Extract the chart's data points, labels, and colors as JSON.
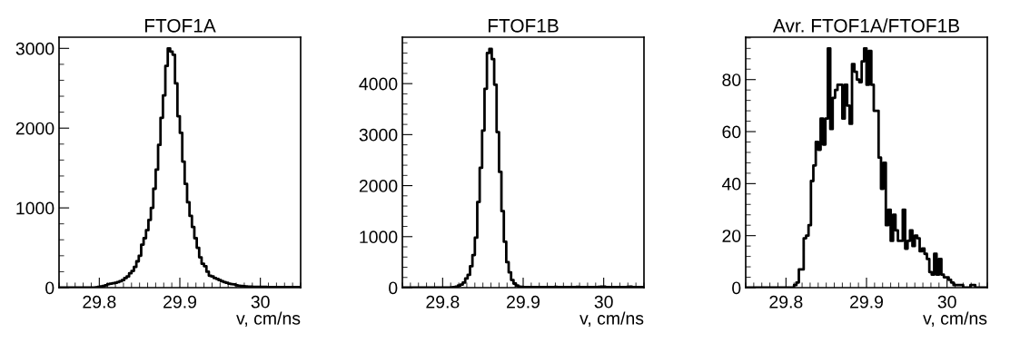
{
  "chart_data": [
    {
      "type": "histogram",
      "title": "FTOF1A",
      "xlabel": "v, cm/ns",
      "color": "#000000",
      "bins": [
        29.75,
        29.753,
        29.756,
        29.759,
        29.762,
        29.765,
        29.768,
        29.771,
        29.774,
        29.777,
        29.78,
        29.783,
        29.786,
        29.789,
        29.792,
        29.795,
        29.798,
        29.801,
        29.804,
        29.807,
        29.81,
        29.813,
        29.816,
        29.819,
        29.822,
        29.825,
        29.828,
        29.831,
        29.834,
        29.837,
        29.84,
        29.843,
        29.846,
        29.849,
        29.852,
        29.855,
        29.858,
        29.861,
        29.864,
        29.867,
        29.87,
        29.873,
        29.876,
        29.879,
        29.882,
        29.885,
        29.888,
        29.891,
        29.894,
        29.897,
        29.9,
        29.903,
        29.906,
        29.909,
        29.912,
        29.915,
        29.918,
        29.921,
        29.924,
        29.927,
        29.93,
        29.933,
        29.936,
        29.939,
        29.942,
        29.945,
        29.948,
        29.951,
        29.954,
        29.957,
        29.96,
        29.963,
        29.966,
        29.969,
        29.972,
        29.975,
        29.978,
        29.981,
        29.984,
        29.987,
        29.99,
        29.993,
        29.996,
        29.999,
        30.002,
        30.005,
        30.008,
        30.011,
        30.014,
        30.017,
        30.02,
        30.023,
        30.026,
        30.029,
        30.032,
        30.035,
        30.038,
        30.041,
        30.044,
        30.047,
        30.05
      ],
      "values": [
        0,
        0,
        0,
        0,
        0,
        0,
        0,
        0,
        0,
        0,
        0,
        0,
        0,
        0,
        0,
        5,
        10,
        15,
        20,
        30,
        45,
        50,
        55,
        60,
        70,
        80,
        95,
        120,
        140,
        180,
        210,
        260,
        330,
        400,
        540,
        620,
        720,
        850,
        1000,
        1240,
        1480,
        1790,
        2130,
        2410,
        2780,
        3000,
        2960,
        2920,
        2560,
        2150,
        1940,
        1580,
        1300,
        1070,
        900,
        760,
        620,
        500,
        380,
        300,
        270,
        200,
        150,
        140,
        120,
        110,
        95,
        80,
        70,
        60,
        50,
        45,
        40,
        30,
        25,
        20,
        18,
        15,
        12,
        12,
        10,
        10,
        10,
        10,
        10,
        10,
        8,
        8,
        8,
        8,
        8,
        8,
        8,
        8,
        6,
        6,
        6,
        6,
        6,
        6
      ],
      "xlim": [
        29.75,
        30.05
      ],
      "xticks": [
        29.8,
        29.9,
        30
      ],
      "ylim": [
        0,
        3140
      ],
      "yticks": [
        0,
        1000,
        2000,
        3000
      ]
    },
    {
      "type": "histogram",
      "title": "FTOF1B",
      "xlabel": "v, cm/ns",
      "color": "#000000",
      "bins": [
        29.75,
        29.753,
        29.756,
        29.759,
        29.762,
        29.765,
        29.768,
        29.771,
        29.774,
        29.777,
        29.78,
        29.783,
        29.786,
        29.789,
        29.792,
        29.795,
        29.798,
        29.801,
        29.804,
        29.807,
        29.81,
        29.813,
        29.816,
        29.819,
        29.822,
        29.825,
        29.828,
        29.831,
        29.834,
        29.837,
        29.84,
        29.843,
        29.846,
        29.849,
        29.852,
        29.855,
        29.858,
        29.861,
        29.864,
        29.867,
        29.87,
        29.873,
        29.876,
        29.879,
        29.882,
        29.885,
        29.888,
        29.891,
        29.894,
        29.897,
        29.9,
        29.903,
        29.906,
        29.909,
        29.912,
        29.915,
        29.918,
        29.921,
        29.924,
        29.927,
        29.93,
        29.933,
        29.936,
        29.939,
        29.942,
        29.945,
        29.948,
        29.951,
        29.954,
        29.957,
        29.96,
        29.963,
        29.966,
        29.969,
        29.972,
        29.975,
        29.978,
        29.981,
        29.984,
        29.987,
        29.99,
        29.993,
        29.996,
        29.999,
        30.002,
        30.005,
        30.008,
        30.011,
        30.014,
        30.017,
        30.02,
        30.023,
        30.026,
        30.029,
        30.032,
        30.035,
        30.038,
        30.041,
        30.044,
        30.047,
        30.05
      ],
      "values": [
        0,
        0,
        0,
        0,
        0,
        0,
        0,
        0,
        0,
        0,
        0,
        0,
        0,
        0,
        0,
        0,
        0,
        0,
        0,
        0,
        5,
        10,
        20,
        40,
        60,
        100,
        180,
        250,
        420,
        640,
        980,
        1680,
        2350,
        3080,
        3900,
        4600,
        4680,
        4480,
        3980,
        3050,
        2270,
        1500,
        900,
        500,
        300,
        150,
        80,
        40,
        20,
        15,
        10,
        10,
        10,
        10,
        10,
        10,
        10,
        10,
        10,
        10,
        10,
        10,
        10,
        15,
        10,
        10,
        10,
        10,
        10,
        10,
        10,
        10,
        15,
        10,
        10,
        10,
        10,
        10,
        10,
        10,
        10,
        15,
        20,
        20,
        10,
        10,
        10,
        10,
        10,
        10,
        10,
        10,
        10,
        15,
        20,
        10,
        10,
        10,
        10,
        10
      ],
      "xlim": [
        29.75,
        30.05
      ],
      "xticks": [
        29.8,
        29.9,
        30
      ],
      "ylim": [
        0,
        4910
      ],
      "yticks": [
        0,
        1000,
        2000,
        3000,
        4000
      ]
    },
    {
      "type": "histogram",
      "title": "Avr. FTOF1A/FTOF1B",
      "xlabel": "v, cm/ns",
      "color": "#000000",
      "bins": [
        29.75,
        29.753,
        29.756,
        29.759,
        29.762,
        29.765,
        29.768,
        29.771,
        29.774,
        29.777,
        29.78,
        29.783,
        29.786,
        29.789,
        29.792,
        29.795,
        29.798,
        29.801,
        29.804,
        29.807,
        29.81,
        29.813,
        29.816,
        29.819,
        29.822,
        29.825,
        29.828,
        29.831,
        29.834,
        29.837,
        29.84,
        29.843,
        29.846,
        29.849,
        29.852,
        29.855,
        29.858,
        29.861,
        29.864,
        29.867,
        29.87,
        29.873,
        29.876,
        29.879,
        29.882,
        29.885,
        29.888,
        29.891,
        29.894,
        29.897,
        29.9,
        29.903,
        29.906,
        29.909,
        29.912,
        29.915,
        29.918,
        29.921,
        29.924,
        29.927,
        29.93,
        29.933,
        29.936,
        29.939,
        29.942,
        29.945,
        29.948,
        29.951,
        29.954,
        29.957,
        29.96,
        29.963,
        29.966,
        29.969,
        29.972,
        29.975,
        29.978,
        29.981,
        29.984,
        29.987,
        29.99,
        29.993,
        29.996,
        29.999,
        30.002,
        30.005,
        30.008,
        30.011,
        30.014,
        30.017,
        30.02,
        30.023,
        30.026,
        30.029,
        30.032,
        30.035,
        30.038,
        30.041,
        30.044,
        30.047,
        30.05
      ],
      "values": [
        0,
        0,
        0,
        0,
        0,
        0,
        0,
        0,
        0,
        0,
        0,
        0,
        0,
        0,
        0,
        0,
        0,
        0,
        0,
        0,
        1,
        2,
        7,
        7,
        19,
        20,
        24,
        41,
        47,
        56,
        53,
        65,
        55,
        65,
        92,
        61,
        73,
        76,
        78,
        78,
        65,
        78,
        70,
        63,
        86,
        83,
        80,
        79,
        87,
        92,
        78,
        91,
        78,
        68,
        68,
        50,
        38,
        48,
        24,
        30,
        18,
        28,
        22,
        18,
        18,
        30,
        15,
        18,
        22,
        16,
        20,
        19,
        14,
        15,
        13,
        11,
        6,
        5,
        13,
        5,
        11,
        5,
        4,
        4,
        3,
        2,
        1,
        1,
        1,
        1,
        0,
        0,
        0,
        1,
        1,
        0,
        0,
        0,
        0,
        0
      ],
      "xlim": [
        29.75,
        30.05
      ],
      "xticks": [
        29.8,
        29.9,
        30
      ],
      "ylim": [
        0,
        96.3
      ],
      "yticks": [
        0,
        20,
        40,
        60,
        80
      ]
    }
  ]
}
